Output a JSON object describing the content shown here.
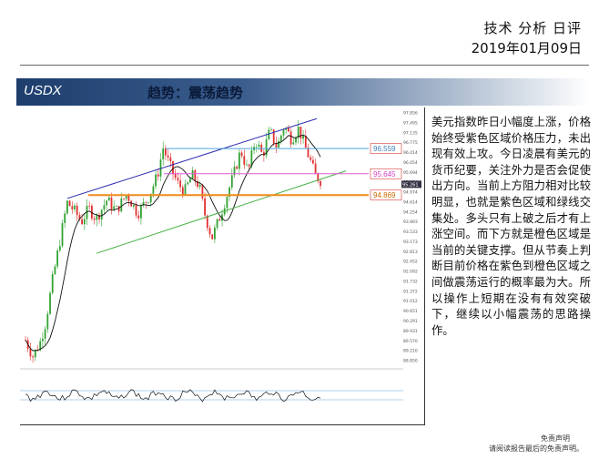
{
  "header": {
    "title": "技术 分析 日评",
    "date": "2019年01月09日"
  },
  "banner": {
    "symbol": "USDX",
    "trend": "趋势：震荡趋势"
  },
  "chart": {
    "y_axis_ticks": [
      "97.856",
      "97.495",
      "97.135",
      "96.775",
      "96.414",
      "96.054",
      "95.694",
      "95.334",
      "94.974",
      "94.614",
      "94.254",
      "93.893",
      "93.533",
      "93.173",
      "92.813",
      "92.452",
      "92.092",
      "91.732",
      "91.372",
      "91.012",
      "90.651",
      "90.291",
      "89.931",
      "89.570",
      "89.210",
      "88.850"
    ],
    "levels": [
      {
        "label": "96.559",
        "value": 96.559,
        "color": "#4aa3df",
        "tag_border": "#e05050",
        "tag_text": "#3a7fc0"
      },
      {
        "label": "95.645",
        "value": 95.645,
        "color": "#e05ad6",
        "tag_border": "#e05050",
        "tag_text": "#d040c0"
      },
      {
        "label": "94.869",
        "value": 94.869,
        "color": "#f08c1a",
        "tag_border": "#e05050",
        "tag_text": "#c86a00"
      }
    ],
    "last_price_tag": "95.261",
    "colors": {
      "up": "#33a333",
      "down": "#e03030",
      "ma": "#111111",
      "channel_upper": "#2b2bb0",
      "channel_lower": "#44b044"
    }
  },
  "commentary": "美元指数昨日小幅度上涨，价格始终受紫色区域价格压力，未出现有效上攻。今日凌晨有美元的货币纪要，关注外力是否会促使出方向。当前上方阻力相对比较明显，也就是紫色区域和绿线交集处。多头只有上破之后才有上涨空间。而下方就是橙色区域是当前的关键支撑。但从节奏上判断目前价格在紫色到橙色区域之间做震荡运行的概率最为大。所以操作上短期在没有有效突破下，继续以小幅震荡的思路操作。",
  "disclaimer": {
    "title": "免责声明",
    "text": "请阅读报告最后的免责声明。"
  }
}
